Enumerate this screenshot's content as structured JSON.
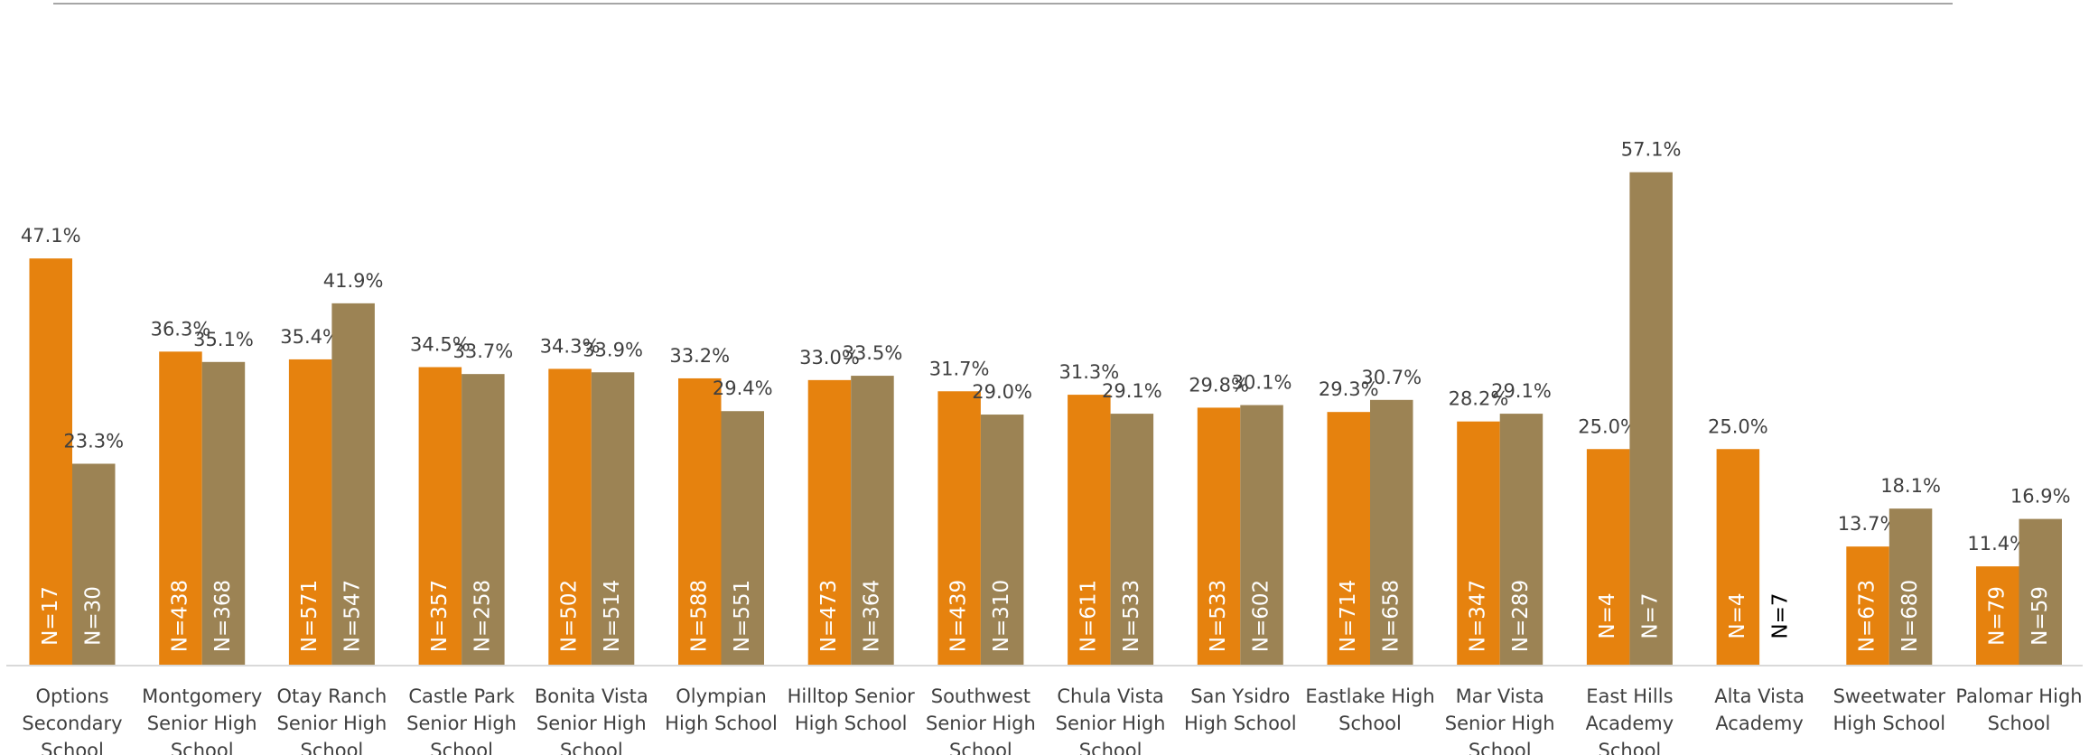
{
  "chart_data": {
    "type": "bar",
    "categories": [
      [
        "Options",
        "Secondary",
        "School"
      ],
      [
        "Montgomery",
        "Senior High",
        "School"
      ],
      [
        "Otay Ranch",
        "Senior High",
        "School"
      ],
      [
        "Castle Park",
        "Senior High",
        "School"
      ],
      [
        "Bonita Vista",
        "Senior High",
        "School"
      ],
      [
        "Olympian",
        "High School"
      ],
      [
        "Hilltop Senior",
        "High School"
      ],
      [
        "Southwest",
        "Senior High",
        "School"
      ],
      [
        "Chula Vista",
        "Senior High",
        "School"
      ],
      [
        "San Ysidro",
        "High School"
      ],
      [
        "Eastlake High",
        "School"
      ],
      [
        "Mar Vista",
        "Senior High",
        "School"
      ],
      [
        "East Hills",
        "Academy",
        "School"
      ],
      [
        "Alta Vista",
        "Academy"
      ],
      [
        "Sweetwater",
        "High School"
      ],
      [
        "Palomar High",
        "School"
      ]
    ],
    "series": [
      {
        "color": "#e6820e",
        "values": [
          47.1,
          36.3,
          35.4,
          34.5,
          34.3,
          33.2,
          33.0,
          31.7,
          31.3,
          29.8,
          29.3,
          28.2,
          25.0,
          25.0,
          13.7,
          11.4
        ],
        "value_labels": [
          "47.1%",
          "36.3%",
          "35.4%",
          "34.5%",
          "34.3%",
          "33.2%",
          "33.0%",
          "31.7%",
          "31.3%",
          "29.8%",
          "29.3%",
          "28.2%",
          "25.0%",
          "25.0%",
          "13.7%",
          "11.4%"
        ],
        "n_labels": [
          "N=17",
          "N=438",
          "N=571",
          "N=357",
          "N=502",
          "N=588",
          "N=473",
          "N=439",
          "N=611",
          "N=533",
          "N=714",
          "N=347",
          "N=4",
          "N=4",
          "N=673",
          "N=79"
        ]
      },
      {
        "color": "#9c8354",
        "values": [
          23.3,
          35.1,
          41.9,
          33.7,
          33.9,
          29.4,
          33.5,
          29.0,
          29.1,
          30.1,
          30.7,
          29.1,
          57.1,
          null,
          18.1,
          16.9
        ],
        "value_labels": [
          "23.3%",
          "35.1%",
          "41.9%",
          "33.7%",
          "33.9%",
          "29.4%",
          "33.5%",
          "29.0%",
          "29.1%",
          "30.1%",
          "30.7%",
          "29.1%",
          "57.1%",
          null,
          "18.1%",
          "16.9%"
        ],
        "n_labels": [
          "N=30",
          "N=368",
          "N=547",
          "N=258",
          "N=514",
          "N=551",
          "N=364",
          "N=310",
          "N=533",
          "N=602",
          "N=658",
          "N=289",
          "N=7",
          "N=7",
          "N=680",
          "N=59"
        ]
      }
    ]
  }
}
